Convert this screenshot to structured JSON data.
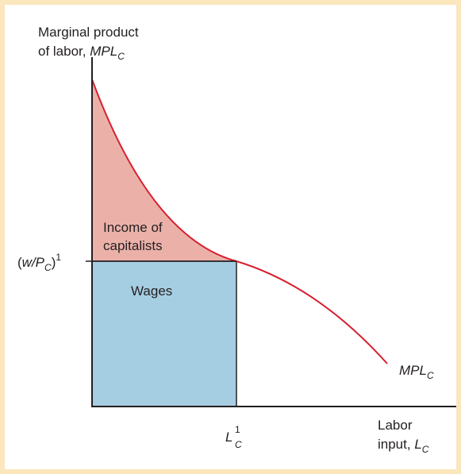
{
  "y_axis_label": {
    "line1": "Marginal product",
    "line2": "of labor, ",
    "symbol": "MPL",
    "subscript": "C"
  },
  "wage_label": {
    "open": "(",
    "symbol": "w/P",
    "subscript": "C",
    "close": ")",
    "superscript": "1"
  },
  "regions": {
    "capitalists": [
      "Income of",
      "capitalists"
    ],
    "wages": "Wages"
  },
  "curve_label": {
    "symbol": "MPL",
    "subscript": "C"
  },
  "labor_point": {
    "symbol": "L",
    "subscript": "C",
    "superscript": "1"
  },
  "x_axis_label": {
    "line1": "Labor",
    "line2": "input, ",
    "symbol": "L",
    "subscript": "C"
  }
}
